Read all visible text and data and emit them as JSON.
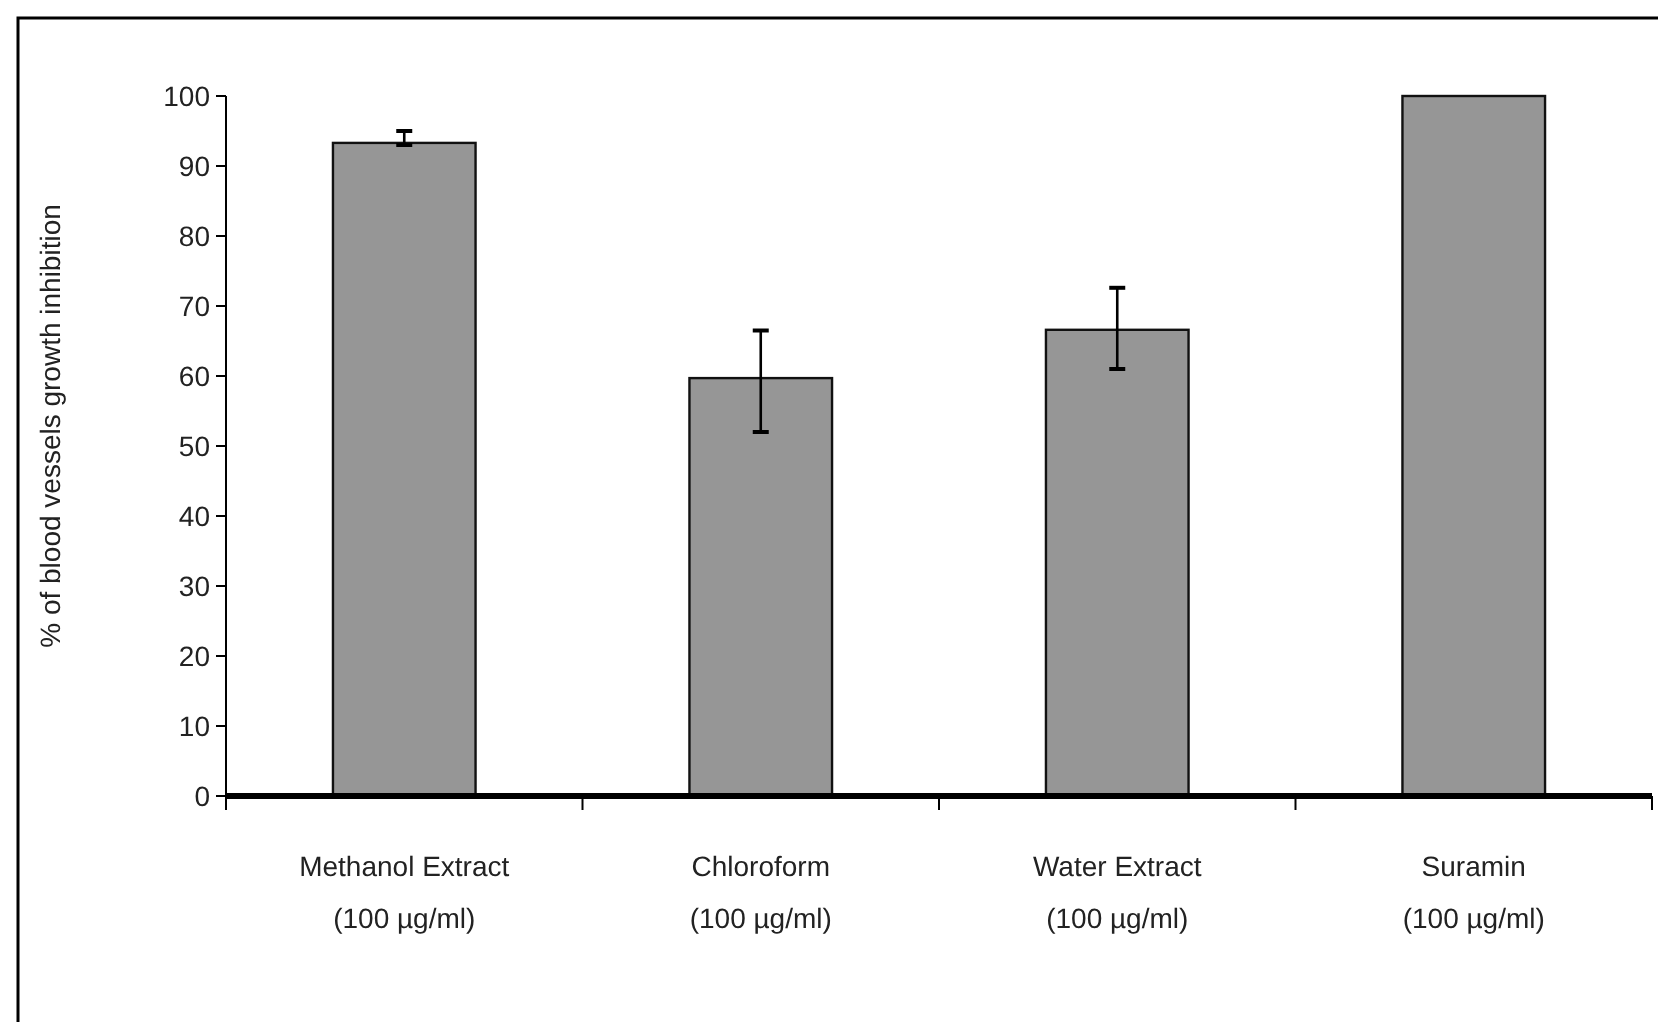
{
  "chart_data": {
    "type": "bar",
    "ylabel": "% of blood vessels growth inhibition",
    "categories": [
      "Methanol Extract\n(100 µg/ml)",
      "Chloroform\n(100 µg/ml)",
      "Water Extract\n(100 µg/ml)",
      "Suramin\n(100 µg/ml)"
    ],
    "values": [
      93.3,
      59.7,
      66.6,
      100
    ],
    "errors": [
      [
        93,
        95
      ],
      [
        52,
        66.5
      ],
      [
        61,
        72.6
      ],
      null
    ],
    "color": "#969696",
    "ylim": [
      0,
      100
    ],
    "yticks": [
      0,
      10,
      20,
      30,
      40,
      50,
      60,
      70,
      80,
      90,
      100
    ],
    "grid": false
  }
}
